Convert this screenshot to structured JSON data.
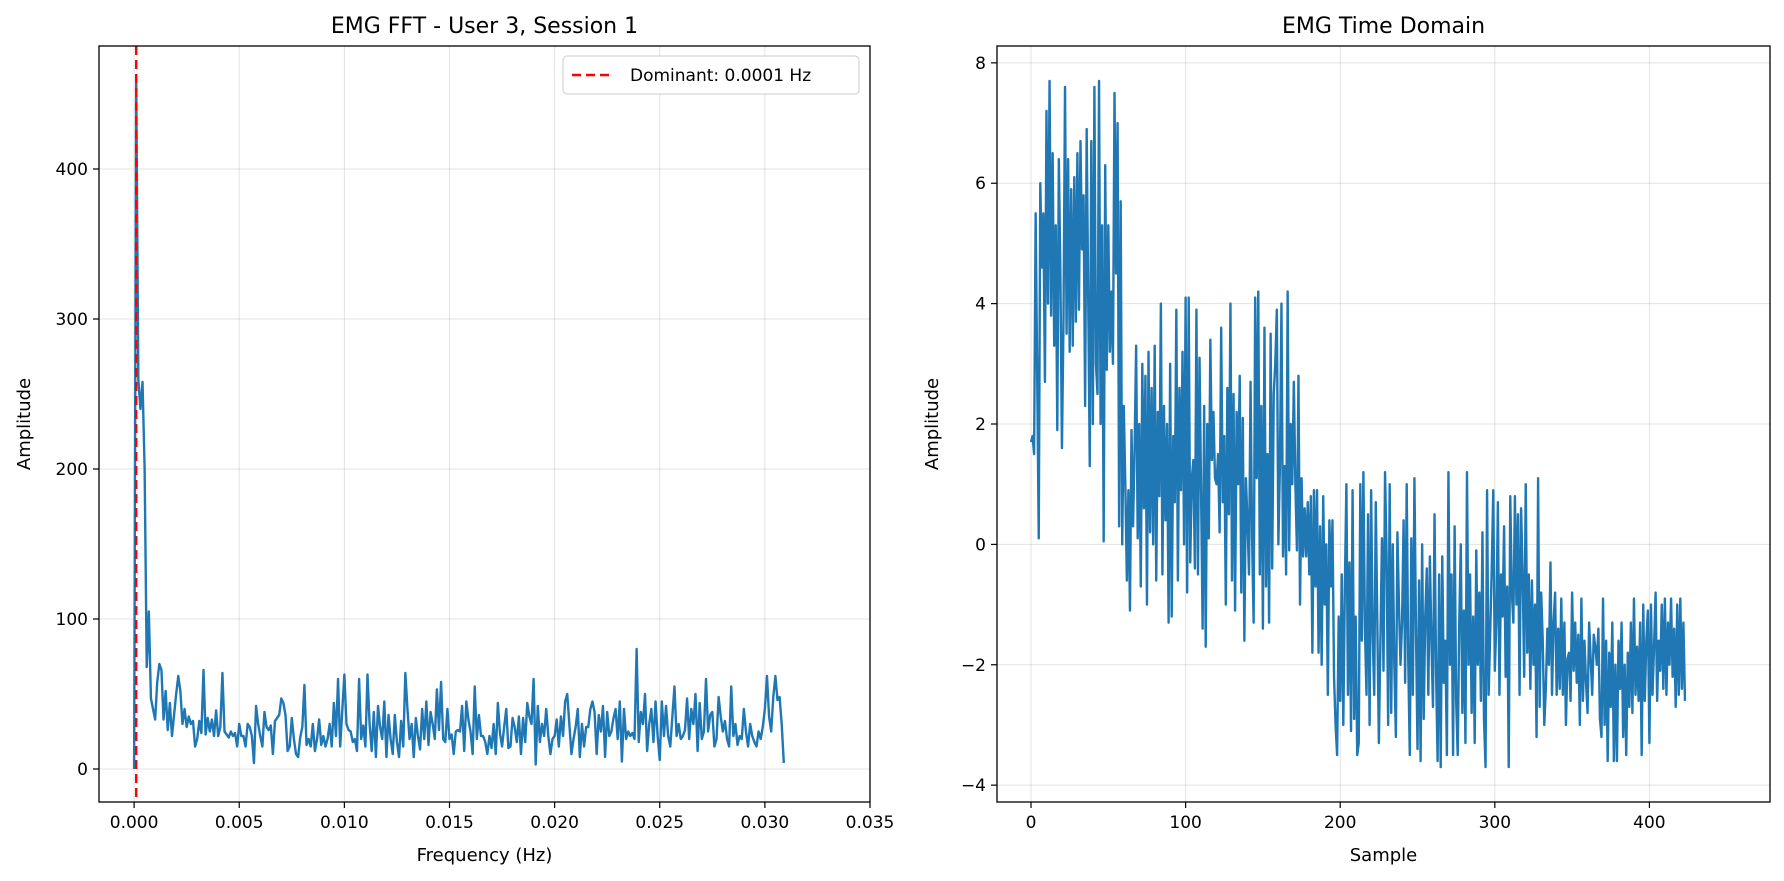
{
  "chart_data": [
    {
      "type": "line",
      "title": "EMG FFT - User 3, Session 1",
      "xlabel": "Frequency (Hz)",
      "ylabel": "Amplitude",
      "xlim": [
        -0.00167,
        0.035
      ],
      "ylim": [
        -22,
        482
      ],
      "xticks": [
        0.0,
        0.005,
        0.01,
        0.015,
        0.02,
        0.025,
        0.03,
        0.035
      ],
      "xtick_labels": [
        "0.000",
        "0.005",
        "0.010",
        "0.015",
        "0.020",
        "0.025",
        "0.030",
        "0.035"
      ],
      "yticks": [
        0,
        100,
        200,
        300,
        400
      ],
      "ytick_labels": [
        "0",
        "100",
        "200",
        "300",
        "400"
      ],
      "grid": true,
      "legend": {
        "placement": "top-right",
        "entries": [
          "Dominant: 0.0001 Hz"
        ]
      },
      "vline": {
        "x": 0.0001,
        "color": "#ff0000",
        "style": "dashed",
        "label": "Dominant: 0.0001 Hz"
      },
      "series": [
        {
          "color": "#1f77b4",
          "x_start": 0.0,
          "x_step": 0.0001,
          "values": [
            0,
            460,
            260,
            240,
            258,
            200,
            68,
            105,
            47,
            40,
            33,
            58,
            70,
            66,
            33,
            52,
            26,
            44,
            22,
            36,
            50,
            62,
            52,
            30,
            40,
            28,
            35,
            30,
            32,
            15,
            20,
            32,
            24,
            66,
            23,
            34,
            25,
            33,
            22,
            39,
            22,
            28,
            64,
            25,
            23,
            21,
            25,
            22,
            24,
            15,
            30,
            22,
            22,
            15,
            30,
            28,
            22,
            4,
            42,
            30,
            22,
            15,
            38,
            28,
            26,
            29,
            10,
            32,
            34,
            36,
            47,
            44,
            36,
            12,
            15,
            34,
            20,
            10,
            8,
            21,
            28,
            56,
            16,
            20,
            15,
            30,
            12,
            20,
            33,
            16,
            22,
            15,
            20,
            30,
            15,
            44,
            22,
            60,
            15,
            39,
            63,
            30,
            26,
            25,
            18,
            20,
            12,
            60,
            20,
            29,
            15,
            63,
            30,
            12,
            38,
            8,
            42,
            28,
            20,
            45,
            8,
            36,
            20,
            10,
            36,
            18,
            8,
            32,
            15,
            64,
            40,
            20,
            30,
            8,
            34,
            22,
            13,
            40,
            20,
            45,
            16,
            38,
            30,
            20,
            53,
            26,
            58,
            20,
            18,
            40,
            20,
            23,
            10,
            25,
            26,
            25,
            42,
            12,
            45,
            33,
            25,
            10,
            55,
            20,
            36,
            22,
            22,
            18,
            10,
            22,
            14,
            30,
            10,
            44,
            24,
            15,
            28,
            40,
            14,
            15,
            34,
            28,
            18,
            35,
            10,
            34,
            18,
            44,
            35,
            30,
            60,
            3,
            42,
            18,
            30,
            22,
            40,
            22,
            10,
            20,
            22,
            33,
            15,
            35,
            22,
            45,
            50,
            30,
            10,
            20,
            28,
            40,
            8,
            30,
            15,
            28,
            28,
            40,
            45,
            38,
            10,
            36,
            25,
            42,
            8,
            38,
            22,
            25,
            34,
            40,
            20,
            45,
            5,
            40,
            20,
            25,
            22,
            24,
            20,
            80,
            18,
            38,
            30,
            50,
            12,
            30,
            40,
            18,
            45,
            22,
            6,
            45,
            22,
            42,
            22,
            15,
            35,
            55,
            22,
            30,
            20,
            22,
            26,
            47,
            20,
            40,
            30,
            50,
            12,
            44,
            20,
            25,
            60,
            25,
            36,
            38,
            15,
            20,
            48,
            35,
            25,
            32,
            20,
            15,
            55,
            22,
            30,
            16,
            22,
            20,
            40,
            25,
            15,
            30,
            22,
            18,
            15,
            25,
            20,
            28,
            40,
            62,
            35,
            25,
            48,
            62,
            46,
            48,
            30,
            4
          ]
        }
      ]
    },
    {
      "type": "line",
      "title": "EMG Time Domain",
      "xlabel": "Sample",
      "ylabel": "Amplitude",
      "xlim": [
        -22,
        478
      ],
      "ylim": [
        -4.28,
        8.28
      ],
      "xticks": [
        0,
        100,
        200,
        300,
        400
      ],
      "xtick_labels": [
        "0",
        "100",
        "200",
        "300",
        "400"
      ],
      "yticks": [
        -4,
        -2,
        0,
        2,
        4,
        6,
        8
      ],
      "ytick_labels": [
        "−4",
        "−2",
        "0",
        "2",
        "4",
        "6",
        "8"
      ],
      "grid": true,
      "series": [
        {
          "color": "#1f77b4",
          "x_start": 0,
          "x_step": 1,
          "values": [
            1.7,
            1.8,
            1.5,
            5.5,
            2.8,
            0.1,
            6.0,
            4.6,
            5.5,
            2.7,
            7.2,
            4.0,
            7.7,
            3.8,
            6.5,
            3.3,
            5.3,
            1.9,
            6.4,
            4.5,
            1.6,
            3.7,
            7.6,
            3.5,
            6.4,
            3.2,
            5.9,
            3.3,
            6.1,
            3.7,
            6.5,
            3.9,
            6.7,
            4.9,
            5.8,
            2.3,
            6.9,
            4.1,
            1.3,
            6.7,
            2.0,
            7.6,
            3.0,
            2.5,
            7.7,
            2.0,
            5.3,
            0.05,
            6.3,
            2.9,
            5.3,
            3.2,
            4.2,
            3.0,
            7.5,
            4.5,
            7.0,
            0.3,
            5.7,
            0.0,
            2.3,
            1.0,
            -0.6,
            0.9,
            -1.1,
            1.9,
            0.3,
            1.6,
            3.3,
            0.1,
            2.0,
            -0.7,
            3.0,
            0.6,
            2.8,
            -1.0,
            3.2,
            0.2,
            2.6,
            0.0,
            3.3,
            -0.6,
            2.2,
            0.8,
            4.0,
            -0.5,
            2.3,
            0.4,
            2.0,
            -1.3,
            3.0,
            -1.2,
            1.8,
            0.7,
            3.9,
            -0.6,
            2.6,
            0.9,
            3.2,
            0.0,
            4.1,
            -0.8,
            4.1,
            -0.3,
            1.1,
            1.4,
            -0.4,
            3.9,
            -0.5,
            3.1,
            0.9,
            -1.4,
            2.3,
            -1.7,
            2.0,
            0.1,
            3.4,
            1.4,
            2.2,
            1.1,
            1.0,
            1.5,
            0.2,
            3.6,
            0.7,
            1.8,
            -1.0,
            2.6,
            0.5,
            4.0,
            -0.6,
            2.5,
            -1.1,
            2.2,
            1.0,
            2.8,
            -0.8,
            2.1,
            -1.6,
            1.1,
            0.4,
            -0.5,
            2.7,
            0.1,
            -1.3,
            4.1,
            1.1,
            4.2,
            -0.5,
            2.3,
            -1.4,
            3.6,
            -0.7,
            1.5,
            -1.3,
            3.5,
            -0.4,
            2.5,
            3.0,
            3.9,
            0.0,
            1.3,
            4.0,
            -0.2,
            1.3,
            -0.5,
            4.2,
            -0.1,
            2.0,
            1.0,
            2.7,
            1.0,
            -0.1,
            2.8,
            -1.0,
            1.1,
            -0.2,
            0.6,
            -0.2,
            0.7,
            -0.5,
            0.8,
            -1.8,
            0.9,
            -0.7,
            0.9,
            -1.8,
            0.3,
            -2.0,
            0.8,
            -1.0,
            0.0,
            -2.5,
            0.4,
            -0.7,
            0.4,
            -2.2,
            -3.0,
            -3.5,
            -1.2,
            -2.6,
            -0.5,
            -3.0,
            -0.7,
            1.0,
            -2.5,
            -0.3,
            -3.1,
            0.9,
            -2.9,
            -1.2,
            -3.5,
            -3.3,
            1.0,
            -1.6,
            1.2,
            -1.4,
            -2.5,
            0.5,
            -3.0,
            0.9,
            -1.5,
            -2.5,
            0.7,
            -1.3,
            -3.3,
            -1.6,
            0.1,
            -2.1,
            1.2,
            -0.2,
            -3.0,
            1.0,
            -2.8,
            0.0,
            -2.0,
            -3.2,
            0.2,
            -1.0,
            -2.0,
            -1.3,
            0.4,
            -2.3,
            1.0,
            -1.9,
            -3.5,
            0.1,
            -2.5,
            1.1,
            -1.4,
            -3.4,
            -0.6,
            -3.6,
            0.0,
            -2.9,
            -1.2,
            -0.4,
            -2.5,
            -0.2,
            -1.6,
            -2.7,
            0.5,
            -2.1,
            -3.6,
            -0.5,
            -3.7,
            -0.2,
            -2.3,
            -1.6,
            -3.5,
            1.2,
            -2.0,
            -0.5,
            -3.5,
            0.3,
            -2.6,
            -3.5,
            -1.3,
            0.0,
            -2.8,
            -1.1,
            -3.3,
            1.2,
            -2.0,
            -0.5,
            -2.8,
            -1.2,
            -3.3,
            -0.1,
            -2.0,
            -0.8,
            -2.6,
            0.2,
            -2.9,
            -3.7,
            0.9,
            -2.5,
            -1.5,
            -0.4,
            0.9,
            -2.1,
            -1.3,
            0.7,
            -2.5,
            -0.5,
            -1.2,
            0.3,
            -2.2,
            -0.7,
            -3.7,
            0.8,
            -0.8,
            -1.3,
            0.8,
            -1.0,
            0.5,
            -2.5,
            0.6,
            -0.5,
            -2.2,
            1.0,
            -1.8,
            -0.5,
            -2.4,
            -0.6,
            -2.0,
            -1.0,
            -3.2,
            1.1,
            -2.7,
            -0.8,
            -1.6,
            -3.0,
            -2.4,
            -1.4,
            -2.0,
            -0.3,
            -2.5,
            -1.3,
            -0.8,
            -2.5,
            -1.4,
            -2.4,
            -0.9,
            -2.5,
            -1.3,
            -3.0,
            -1.9,
            -1.8,
            -2.6,
            -0.8,
            -2.1,
            -1.3,
            -2.3,
            -1.5,
            -3.0,
            -0.9,
            -2.6,
            -1.6,
            -2.3,
            -2.8,
            -1.3,
            -1.9,
            -2.5,
            -1.5,
            -1.7,
            -2.0,
            -1.4,
            -2.9,
            -3.2,
            -0.9,
            -3.0,
            -1.6,
            -3.6,
            -1.8,
            -2.7,
            -1.3,
            -3.6,
            -2.0,
            -3.6,
            -1.6,
            -2.4,
            -1.3,
            -3.2,
            -2.0,
            -3.5,
            -1.8,
            -2.7,
            -1.3,
            -2.8,
            -0.9,
            -2.5,
            -1.7,
            -2.6,
            -1.3,
            -3.5,
            -1.0,
            -2.6,
            -1.6,
            -1.1,
            -3.3,
            -1.0,
            -2.5,
            -1.7,
            -0.8,
            -2.6,
            -1.6,
            -2.1,
            -1.0,
            -2.4,
            -0.9,
            -2.5,
            -1.3,
            -2.0,
            -0.9,
            -2.2,
            -1.4,
            -2.7,
            -1.0,
            -2.5,
            -0.9,
            -2.4,
            -1.3,
            -2.6
          ]
        }
      ]
    }
  ]
}
